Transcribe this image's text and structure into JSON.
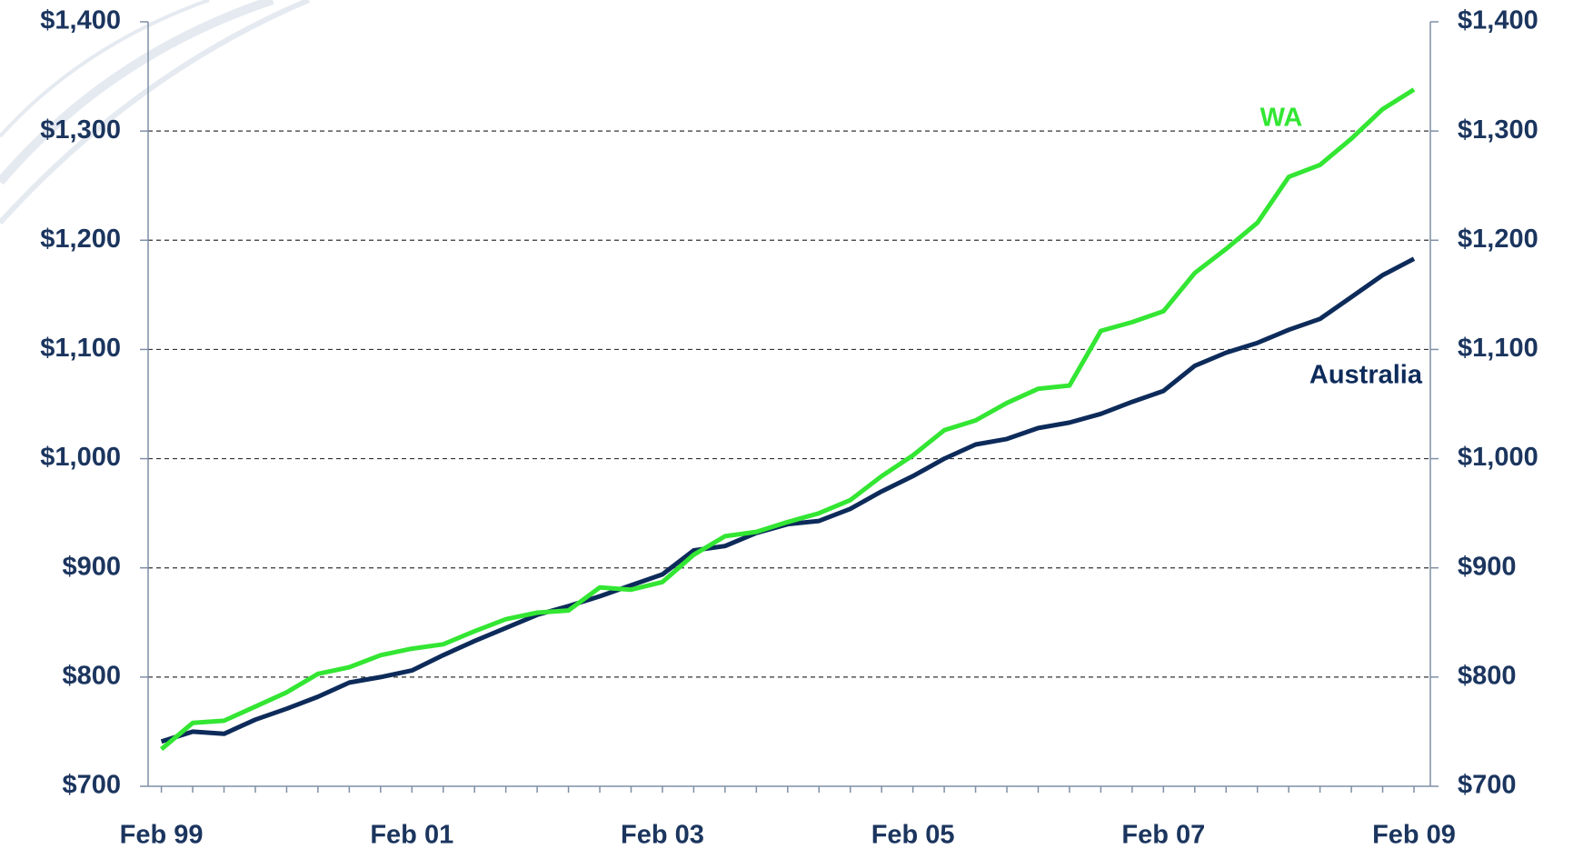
{
  "chart_data": {
    "type": "line",
    "categories": [
      "Feb 99",
      null,
      null,
      null,
      null,
      null,
      null,
      null,
      "Feb 01",
      null,
      null,
      null,
      null,
      null,
      null,
      null,
      "Feb 03",
      null,
      null,
      null,
      null,
      null,
      null,
      null,
      "Feb 05",
      null,
      null,
      null,
      null,
      null,
      null,
      null,
      "Feb 07",
      null,
      null,
      null,
      null,
      null,
      null,
      null,
      "Feb 09"
    ],
    "series": [
      {
        "name": "Australia",
        "color": "#0d2b5a",
        "values": [
          741,
          750,
          748,
          761,
          771,
          782,
          795,
          800,
          806,
          820,
          833,
          845,
          857,
          865,
          874,
          884,
          894,
          916,
          920,
          932,
          940,
          943,
          954,
          970,
          984,
          1000,
          1013,
          1018,
          1028,
          1033,
          1041,
          1052,
          1062,
          1085,
          1097,
          1106,
          1118,
          1128,
          1148,
          1168,
          1183
        ]
      },
      {
        "name": "WA",
        "color": "#33e633",
        "values": [
          734,
          758,
          760,
          773,
          786,
          803,
          809,
          820,
          826,
          830,
          842,
          853,
          859,
          861,
          882,
          880,
          887,
          912,
          929,
          933,
          942,
          950,
          962,
          984,
          1003,
          1026,
          1035,
          1051,
          1064,
          1067,
          1117,
          1125,
          1135,
          1170,
          1192,
          1216,
          1258,
          1269,
          1293,
          1320,
          1338
        ]
      }
    ],
    "ylim": [
      700,
      1400
    ],
    "yticks": [
      {
        "value": 700,
        "label": "$700"
      },
      {
        "value": 800,
        "label": "$800"
      },
      {
        "value": 900,
        "label": "$900"
      },
      {
        "value": 1000,
        "label": "$1,000"
      },
      {
        "value": 1100,
        "label": "$1,100"
      },
      {
        "value": 1200,
        "label": "$1,200"
      },
      {
        "value": 1300,
        "label": "$1,300"
      },
      {
        "value": 1400,
        "label": "$1,400"
      }
    ],
    "y2lim": [
      700,
      1400
    ],
    "y2ticks": [
      {
        "value": 700,
        "label": "$700"
      },
      {
        "value": 800,
        "label": "$800"
      },
      {
        "value": 900,
        "label": "$900"
      },
      {
        "value": 1000,
        "label": "$1,000"
      },
      {
        "value": 1100,
        "label": "$1,100"
      },
      {
        "value": 1200,
        "label": "$1,200"
      },
      {
        "value": 1300,
        "label": "$1,300"
      },
      {
        "value": 1400,
        "label": "$1,400"
      }
    ],
    "grid": true
  }
}
